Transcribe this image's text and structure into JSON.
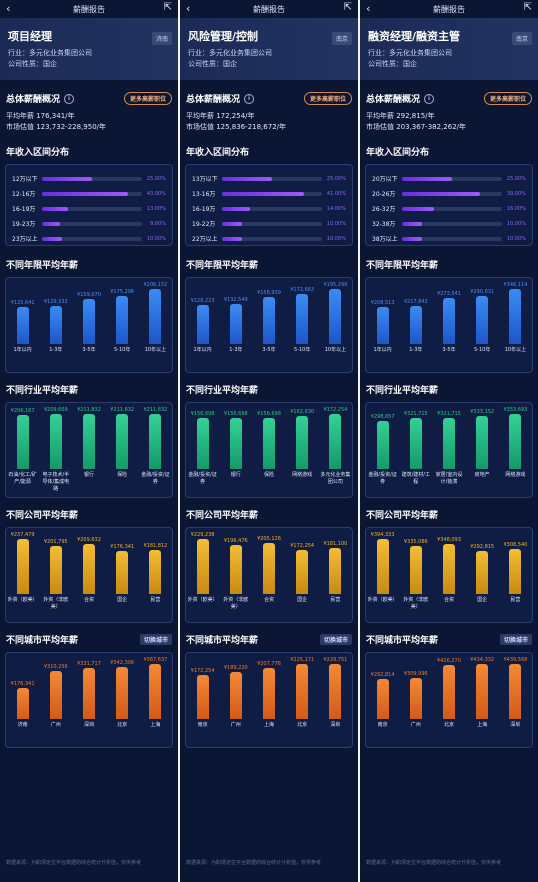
{
  "panels": [
    {
      "header_title": "薪酬报告",
      "job": "项目经理",
      "city": "济南",
      "industry": "行业：多元化业务集团公司",
      "nature": "公司性质：国企",
      "overview_title": "总体薪酬概况",
      "more_label": "更多高薪职位",
      "avg": "平均年薪  176,341/年",
      "market": "市场估值  123,732-228,950/年",
      "dist_title": "年收入区间分布",
      "dist": [
        {
          "label": "12万以下",
          "pct": "25.00%",
          "v": 0.25
        },
        {
          "label": "12-16万",
          "pct": "43.00%",
          "v": 0.43
        },
        {
          "label": "16-19万",
          "pct": "13.00%",
          "v": 0.13
        },
        {
          "label": "19-23万",
          "pct": "9.00%",
          "v": 0.09
        },
        {
          "label": "23万以上",
          "pct": "10.00%",
          "v": 0.1
        }
      ],
      "years_title": "不同年限平均年薪",
      "years": {
        "labels": [
          "1年以内",
          "1-3年",
          "3-5年",
          "5-10年",
          "10年以上"
        ],
        "vals": [
          "¥125,641",
          "¥129,333",
          "¥159,070",
          "¥175,206",
          "¥206,152"
        ],
        "nums": [
          125641,
          129333,
          159070,
          175206,
          206152
        ]
      },
      "industry_title": "不同行业平均年薪",
      "industries": {
        "labels": [
          "石油/化工/矿产/能源",
          "电子技术/半导体/集成电路",
          "银行",
          "保险",
          "金融/投资/证券"
        ],
        "vals": [
          "¥206,167",
          "¥209,669",
          "¥211,832",
          "¥211,832",
          "¥211,832"
        ],
        "nums": [
          206167,
          209669,
          211832,
          211832,
          211832
        ]
      },
      "company_title": "不同公司平均年薪",
      "companies": {
        "labels": [
          "外资（欧美）",
          "外资（非欧美）",
          "合资",
          "国企",
          "民营"
        ],
        "vals": [
          "¥237,479",
          "¥201,795",
          "¥209,632",
          "¥176,341",
          "¥181,812"
        ],
        "nums": [
          237479,
          201795,
          209632,
          176341,
          181812
        ]
      },
      "city_title": "不同城市平均年薪",
      "switch_city": "切换城市",
      "cities": {
        "labels": [
          "济南",
          "广州",
          "深圳",
          "北京",
          "上海"
        ],
        "vals": [
          "¥176,341",
          "¥310,256",
          "¥331,717",
          "¥342,306",
          "¥367,637"
        ],
        "nums": [
          176341,
          310256,
          331717,
          342306,
          367637
        ]
      },
      "footnote": "数据来源：为职场定位平台数据的综合统计分析值，仅供参考"
    },
    {
      "header_title": "薪酬报告",
      "job": "风险管理/控制",
      "city": "南京",
      "industry": "行业：多元化业务集团公司",
      "nature": "公司性质：国企",
      "overview_title": "总体薪酬概况",
      "more_label": "更多高薪职位",
      "avg": "平均年薪  172,254/年",
      "market": "市场估值  125,836-218,672/年",
      "dist_title": "年收入区间分布",
      "dist": [
        {
          "label": "13万以下",
          "pct": "25.00%",
          "v": 0.25
        },
        {
          "label": "13-16万",
          "pct": "41.00%",
          "v": 0.41
        },
        {
          "label": "16-19万",
          "pct": "14.00%",
          "v": 0.14
        },
        {
          "label": "19-22万",
          "pct": "10.00%",
          "v": 0.1
        },
        {
          "label": "22万以上",
          "pct": "10.00%",
          "v": 0.1
        }
      ],
      "years_title": "不同年限平均年薪",
      "years": {
        "labels": [
          "1年以内",
          "1-3年",
          "3-5年",
          "5-10年",
          "10年以上"
        ],
        "vals": [
          "¥128,223",
          "¥132,549",
          "¥158,939",
          "¥172,663",
          "¥195,299"
        ],
        "nums": [
          128223,
          132549,
          158939,
          172663,
          195299
        ]
      },
      "industry_title": "不同行业平均年薪",
      "industries": {
        "labels": [
          "金融/投资/证券",
          "银行",
          "保险",
          "网络游戏",
          "多元化业务集团公司"
        ],
        "vals": [
          "¥156,698",
          "¥156,698",
          "¥156,698",
          "¥162,630",
          "¥172,254"
        ],
        "nums": [
          156698,
          156698,
          156698,
          162630,
          172254
        ]
      },
      "company_title": "不同公司平均年薪",
      "companies": {
        "labels": [
          "外资（欧美）",
          "外资（非欧美）",
          "合资",
          "国企",
          "民营"
        ],
        "vals": [
          "¥229,238",
          "¥196,476",
          "¥205,126",
          "¥172,254",
          "¥181,100"
        ],
        "nums": [
          229238,
          196476,
          205126,
          172254,
          181100
        ]
      },
      "city_title": "不同城市平均年薪",
      "switch_city": "切换城市",
      "cities": {
        "labels": [
          "南京",
          "广州",
          "上海",
          "北京",
          "深圳"
        ],
        "vals": [
          "¥172,254",
          "¥189,220",
          "¥207,776",
          "¥225,171",
          "¥229,751"
        ],
        "nums": [
          172254,
          189220,
          207776,
          225171,
          229751
        ]
      },
      "footnote": "数据来源：为职场定位平台数据的综合统计分析值，仅供参考"
    },
    {
      "header_title": "薪酬报告",
      "job": "融资经理/融资主管",
      "city": "南京",
      "industry": "行业：多元化业务集团公司",
      "nature": "公司性质：国企",
      "overview_title": "总体薪酬概况",
      "more_label": "更多高薪职位",
      "avg": "平均年薪  292,815/年",
      "market": "市场估值  203,367-382,262/年",
      "dist_title": "年收入区间分布",
      "dist": [
        {
          "label": "20万以下",
          "pct": "25.00%",
          "v": 0.25
        },
        {
          "label": "20-26万",
          "pct": "39.00%",
          "v": 0.39
        },
        {
          "label": "26-32万",
          "pct": "16.00%",
          "v": 0.16
        },
        {
          "label": "32-38万",
          "pct": "10.00%",
          "v": 0.1
        },
        {
          "label": "38万以上",
          "pct": "10.00%",
          "v": 0.1
        }
      ],
      "years_title": "不同年限平均年薪",
      "years": {
        "labels": [
          "1年以内",
          "1-3年",
          "3-5年",
          "5-10年",
          "10年以上"
        ],
        "vals": [
          "¥208,513",
          "¥217,843",
          "¥273,541",
          "¥290,631",
          "¥346,114"
        ],
        "nums": [
          208513,
          217843,
          273541,
          290631,
          346114
        ]
      },
      "industry_title": "不同行业平均年薪",
      "industries": {
        "labels": [
          "金融/投资/证券",
          "建筑/建材/工程",
          "家居/室内设计/装潢",
          "房地产",
          "网络游戏"
        ],
        "vals": [
          "¥298,657",
          "¥321,715",
          "¥321,715",
          "¥333,152",
          "¥353,693"
        ],
        "nums": [
          298657,
          321715,
          321715,
          333152,
          353693
        ]
      },
      "company_title": "不同公司平均年薪",
      "companies": {
        "labels": [
          "外资（欧美）",
          "外资（非欧美）",
          "合资",
          "国企",
          "民营"
        ],
        "vals": [
          "¥394,333",
          "¥335,086",
          "¥348,093",
          "¥292,815",
          "¥308,540"
        ],
        "nums": [
          394333,
          335086,
          348093,
          292815,
          308540
        ]
      },
      "city_title": "不同城市平均年薪",
      "switch_city": "切换城市",
      "cities": {
        "labels": [
          "南京",
          "广州",
          "北京",
          "上海",
          "深圳"
        ],
        "vals": [
          "¥292,814",
          "¥309,996",
          "¥426,270",
          "¥434,332",
          "¥439,568"
        ],
        "nums": [
          292814,
          309996,
          426270,
          434332,
          439568
        ]
      },
      "footnote": "数据来源：为职场定位平台数据的综合统计分析值，仅供参考"
    }
  ],
  "colors": {
    "blue": "#2f7df0",
    "green": "#2bc48a",
    "gold": "#f0b12a",
    "orange": "#f07a2a",
    "purple": "#7c3aed"
  }
}
